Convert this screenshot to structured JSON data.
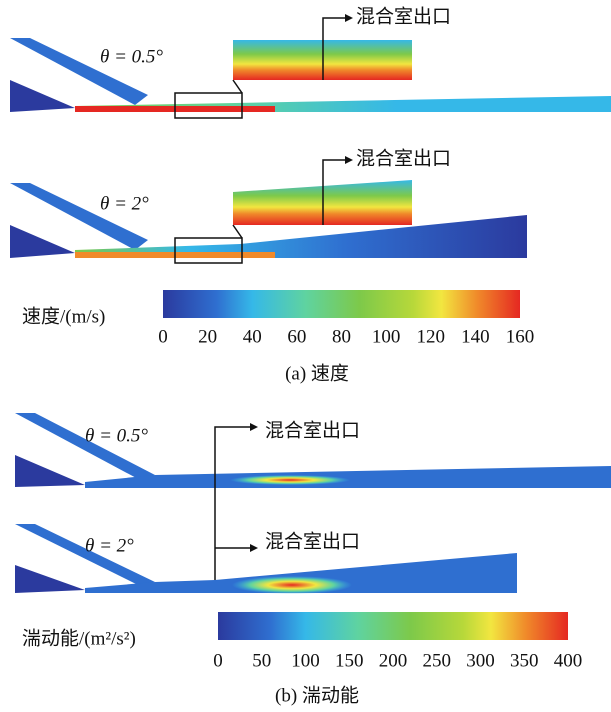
{
  "panels": [
    {
      "cases": [
        {
          "label": "θ = 0.5°",
          "outlet_label": "混合室出口"
        },
        {
          "label": "θ = 2°",
          "outlet_label": "混合室出口"
        }
      ],
      "colorbar": {
        "label": "速度/(m/s)",
        "lim": [
          0,
          160
        ],
        "ticks": [
          0,
          20,
          40,
          60,
          80,
          100,
          120,
          140,
          160
        ]
      },
      "caption": "(a) 速度"
    },
    {
      "cases": [
        {
          "label": "θ = 0.5°",
          "outlet_label": "混合室出口"
        },
        {
          "label": "θ = 2°",
          "outlet_label": "混合室出口"
        }
      ],
      "colorbar": {
        "label": "湍动能/(m²/s²)",
        "lim": [
          0,
          400
        ],
        "ticks": [
          0,
          50,
          100,
          150,
          200,
          250,
          300,
          350,
          400
        ]
      },
      "caption": "(b) 湍动能"
    }
  ]
}
